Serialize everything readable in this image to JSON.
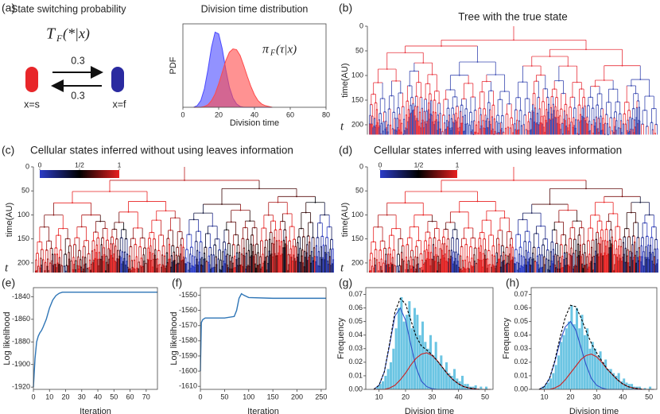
{
  "panel_labels": [
    "(a)",
    "(b)",
    "(c)",
    "(d)",
    "(e)",
    "(f)",
    "(g)",
    "(h)"
  ],
  "diagram": {
    "title": "State switching probability",
    "formula": {
      "main": "T",
      "sub": "F",
      "arg": "(*|x)"
    },
    "rate_top": "0.3",
    "rate_bottom": "0.3",
    "state_left": "x=s",
    "state_right": "x=f"
  },
  "trees": [
    {
      "title": "Tree with the true state",
      "ylabel": "time(AU)",
      "t_label": "t",
      "ylim": [
        0,
        220
      ],
      "yticks": [
        0,
        50,
        100,
        150,
        200
      ]
    },
    {
      "title": "Cellular states inferred without using leaves information",
      "ylabel": "time(AU)",
      "t_label": "t",
      "ylim": [
        0,
        220
      ],
      "yticks": [
        0,
        50,
        100,
        150,
        200
      ],
      "colorbar_ticks": [
        0,
        {
          "value": 0.5,
          "label": "1/2"
        },
        1
      ]
    },
    {
      "title": "Cellular states inferred with using leaves information",
      "ylabel": "time(AU)",
      "t_label": "t",
      "ylim": [
        0,
        220
      ],
      "yticks": [
        0,
        50,
        100,
        150,
        200
      ],
      "colorbar_ticks": [
        0,
        {
          "value": 0.5,
          "label": "1/2"
        },
        1
      ]
    }
  ],
  "chart_data": [
    {
      "type": "area",
      "title": "Division time distribution",
      "xlabel": "Division time",
      "ylabel": "PDF",
      "annotation": {
        "main": "π",
        "sub": "F",
        "arg": "(τ|x)"
      },
      "xlim": [
        0,
        80
      ],
      "xticks": [
        0,
        20,
        40,
        60,
        80
      ],
      "ylim": [
        0,
        0.1
      ],
      "x": [
        6,
        8,
        10,
        12,
        14,
        16,
        18,
        20,
        22,
        24,
        26,
        28,
        30,
        32,
        34,
        36,
        38,
        40,
        42,
        44,
        46,
        48,
        50
      ],
      "series": [
        {
          "color": "#4a4aff",
          "values": [
            0,
            0.002,
            0.008,
            0.022,
            0.045,
            0.072,
            0.09,
            0.088,
            0.07,
            0.045,
            0.024,
            0.011,
            0.004,
            0.001,
            0,
            0,
            0,
            0,
            0,
            0,
            0,
            0,
            0
          ]
        },
        {
          "color": "#ff4a4a",
          "values": [
            0,
            0,
            0,
            0.001,
            0.003,
            0.008,
            0.016,
            0.028,
            0.042,
            0.056,
            0.066,
            0.07,
            0.069,
            0.062,
            0.05,
            0.037,
            0.025,
            0.015,
            0.008,
            0.004,
            0.002,
            0.001,
            0
          ]
        }
      ]
    },
    {
      "type": "line",
      "xlabel": "Iteration",
      "ylabel": "Log likelihood",
      "color": "#2e75b6",
      "xlim": [
        0,
        77
      ],
      "xticks": [
        0,
        10,
        20,
        30,
        40,
        50,
        60,
        70
      ],
      "ylim": [
        -1922,
        -1832
      ],
      "yticks": [
        -1920,
        -1900,
        -1880,
        -1860,
        -1840
      ],
      "x": [
        0,
        1,
        2,
        3,
        4,
        5,
        6,
        8,
        10,
        12,
        14,
        16,
        18,
        20,
        30,
        77
      ],
      "values": [
        -1920,
        -1895,
        -1880,
        -1875,
        -1872,
        -1870,
        -1867,
        -1860,
        -1850,
        -1843,
        -1839,
        -1837,
        -1836,
        -1836,
        -1836,
        -1836
      ]
    },
    {
      "type": "line",
      "xlabel": "Iteration",
      "ylabel": "Log likelihood",
      "color": "#2e75b6",
      "xlim": [
        0,
        260
      ],
      "xticks": [
        0,
        50,
        100,
        150,
        200,
        250
      ],
      "ylim": [
        -1612,
        -1545
      ],
      "yticks": [
        -1610,
        -1600,
        -1590,
        -1580,
        -1570,
        -1560,
        -1550
      ],
      "x": [
        0,
        2,
        5,
        10,
        50,
        70,
        75,
        80,
        85,
        90,
        100,
        150,
        260
      ],
      "values": [
        -1600,
        -1568,
        -1566,
        -1565,
        -1565,
        -1564,
        -1560,
        -1552,
        -1549,
        -1550,
        -1551.5,
        -1552,
        -1552
      ]
    },
    {
      "type": "histogram",
      "xlabel": "Division time",
      "ylabel": "Frequency",
      "color": "#6cc5e3",
      "xlim": [
        5,
        53
      ],
      "xticks": [
        10,
        20,
        30,
        40,
        50
      ],
      "ylim": [
        0,
        0.075
      ],
      "yticks": [
        {
          "value": 0,
          "label": "0.00"
        },
        {
          "value": 0.01,
          "label": "0.01"
        },
        {
          "value": 0.02,
          "label": "0.02"
        },
        {
          "value": 0.03,
          "label": "0.03"
        },
        {
          "value": 0.04,
          "label": "0.04"
        },
        {
          "value": 0.05,
          "label": "0.05"
        },
        {
          "value": 0.06,
          "label": "0.06"
        },
        {
          "value": 0.07,
          "label": "0.07"
        }
      ],
      "bins": [
        8,
        9,
        10,
        11,
        12,
        13,
        14,
        15,
        16,
        17,
        18,
        19,
        20,
        21,
        22,
        23,
        24,
        25,
        26,
        27,
        28,
        29,
        30,
        31,
        32,
        33,
        34,
        35,
        36,
        37,
        38,
        39,
        40,
        41,
        42,
        43,
        44,
        45,
        46,
        47,
        48,
        49,
        50,
        51,
        52
      ],
      "counts": [
        0,
        0.002,
        0.004,
        0.006,
        0.01,
        0.015,
        0.02,
        0.03,
        0.045,
        0.06,
        0.068,
        0.05,
        0.055,
        0.065,
        0.045,
        0.06,
        0.055,
        0.04,
        0.05,
        0.035,
        0.03,
        0.04,
        0.025,
        0.035,
        0.02,
        0.025,
        0.015,
        0.02,
        0.012,
        0.01,
        0.015,
        0.008,
        0.006,
        0.01,
        0.004,
        0.004,
        0.002,
        0.002,
        0.003,
        0,
        0.002,
        0,
        0.002,
        0
      ],
      "series": [
        {
          "color": "#3050c8",
          "x": [
            8,
            10,
            12,
            14,
            16,
            18,
            20,
            22,
            24,
            26,
            28,
            30,
            32,
            34,
            36,
            38,
            40,
            42,
            44,
            46,
            48,
            50,
            52
          ],
          "values": [
            0,
            0.003,
            0.013,
            0.033,
            0.054,
            0.06,
            0.051,
            0.033,
            0.016,
            0.006,
            0.002,
            0.0005,
            0,
            0,
            0,
            0,
            0,
            0,
            0,
            0,
            0,
            0,
            0
          ]
        },
        {
          "color": "#cc2222",
          "x": [
            8,
            10,
            12,
            14,
            16,
            18,
            20,
            22,
            24,
            26,
            28,
            30,
            32,
            34,
            36,
            38,
            40,
            42,
            44,
            46,
            48,
            50,
            52
          ],
          "values": [
            0,
            0,
            0,
            0.001,
            0.003,
            0.007,
            0.012,
            0.018,
            0.023,
            0.026,
            0.027,
            0.025,
            0.021,
            0.016,
            0.011,
            0.007,
            0.004,
            0.002,
            0.001,
            0.0005,
            0,
            0,
            0
          ]
        },
        {
          "color": "#000000",
          "dashed": true,
          "x": [
            8,
            10,
            12,
            14,
            16,
            18,
            20,
            22,
            24,
            26,
            28,
            30,
            32,
            34,
            36,
            38,
            40,
            42,
            44,
            46,
            48,
            50,
            52
          ],
          "values": [
            0,
            0.003,
            0.013,
            0.034,
            0.057,
            0.067,
            0.063,
            0.051,
            0.039,
            0.032,
            0.029,
            0.0255,
            0.021,
            0.016,
            0.011,
            0.007,
            0.004,
            0.002,
            0.001,
            0.0005,
            0,
            0,
            0
          ]
        }
      ]
    },
    {
      "type": "histogram",
      "xlabel": "Division time",
      "ylabel": "Frequency",
      "color": "#6cc5e3",
      "xlim": [
        5,
        53
      ],
      "xticks": [
        10,
        20,
        30,
        40,
        50
      ],
      "ylim": [
        0,
        0.075
      ],
      "yticks": [
        {
          "value": 0,
          "label": "0.00"
        },
        {
          "value": 0.01,
          "label": "0.01"
        },
        {
          "value": 0.02,
          "label": "0.02"
        },
        {
          "value": 0.03,
          "label": "0.03"
        },
        {
          "value": 0.04,
          "label": "0.04"
        },
        {
          "value": 0.05,
          "label": "0.05"
        },
        {
          "value": 0.06,
          "label": "0.06"
        },
        {
          "value": 0.07,
          "label": "0.07"
        }
      ],
      "bins": [
        8,
        9,
        10,
        11,
        12,
        13,
        14,
        15,
        16,
        17,
        18,
        19,
        20,
        21,
        22,
        23,
        24,
        25,
        26,
        27,
        28,
        29,
        30,
        31,
        32,
        33,
        34,
        35,
        36,
        37,
        38,
        39,
        40,
        41,
        42,
        43,
        44,
        45,
        46,
        47,
        48,
        49,
        50,
        51,
        52
      ],
      "counts": [
        0,
        0.002,
        0.003,
        0.005,
        0.008,
        0.012,
        0.018,
        0.025,
        0.035,
        0.04,
        0.045,
        0.05,
        0.062,
        0.048,
        0.06,
        0.045,
        0.055,
        0.04,
        0.045,
        0.03,
        0.035,
        0.03,
        0.025,
        0.028,
        0.02,
        0.022,
        0.015,
        0.015,
        0.012,
        0.01,
        0.012,
        0.006,
        0.008,
        0.005,
        0.004,
        0.004,
        0.002,
        0.002,
        0.002,
        0,
        0.001,
        0,
        0.002,
        0
      ],
      "series": [
        {
          "color": "#3050c8",
          "x": [
            8,
            10,
            12,
            14,
            16,
            18,
            20,
            22,
            24,
            26,
            28,
            30,
            32,
            34,
            36,
            38,
            40,
            42,
            44,
            46,
            48,
            50,
            52
          ],
          "values": [
            0,
            0.002,
            0.008,
            0.02,
            0.035,
            0.046,
            0.05,
            0.044,
            0.031,
            0.018,
            0.008,
            0.003,
            0.001,
            0,
            0,
            0,
            0,
            0,
            0,
            0,
            0,
            0,
            0
          ]
        },
        {
          "color": "#cc2222",
          "x": [
            8,
            10,
            12,
            14,
            16,
            18,
            20,
            22,
            24,
            26,
            28,
            30,
            32,
            34,
            36,
            38,
            40,
            42,
            44,
            46,
            48,
            50,
            52
          ],
          "values": [
            0,
            0,
            0,
            0.001,
            0.003,
            0.007,
            0.012,
            0.017,
            0.022,
            0.025,
            0.026,
            0.024,
            0.02,
            0.015,
            0.011,
            0.007,
            0.004,
            0.002,
            0.001,
            0.0005,
            0,
            0,
            0
          ]
        },
        {
          "color": "#000000",
          "dashed": true,
          "x": [
            8,
            10,
            12,
            14,
            16,
            18,
            20,
            22,
            24,
            26,
            28,
            30,
            32,
            34,
            36,
            38,
            40,
            42,
            44,
            46,
            48,
            50,
            52
          ],
          "values": [
            0,
            0.002,
            0.008,
            0.021,
            0.038,
            0.053,
            0.062,
            0.061,
            0.053,
            0.043,
            0.034,
            0.027,
            0.021,
            0.015,
            0.011,
            0.007,
            0.004,
            0.002,
            0.001,
            0.0005,
            0,
            0,
            0
          ]
        }
      ]
    }
  ]
}
